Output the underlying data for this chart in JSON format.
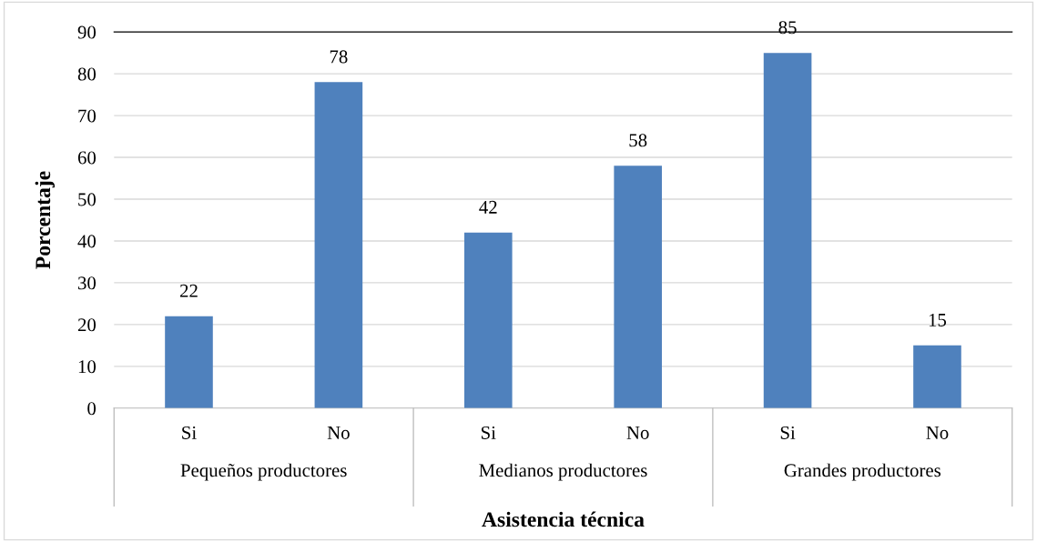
{
  "chart_data": {
    "type": "bar",
    "xlabel": "Asistencia técnica",
    "ylabel": "Porcentaje",
    "categories": [
      "Si",
      "No",
      "Si",
      "No",
      "Si",
      "No"
    ],
    "values": [
      22,
      78,
      42,
      58,
      85,
      15
    ],
    "color": "#4f81bd",
    "ylim": [
      0,
      90
    ],
    "yticks": [
      0,
      10,
      20,
      30,
      40,
      50,
      60,
      70,
      80,
      90
    ],
    "grid": "y",
    "data_labels": true,
    "annotations": [
      "Pequeños productores",
      "Medianos productores",
      "Grandes productores"
    ]
  }
}
